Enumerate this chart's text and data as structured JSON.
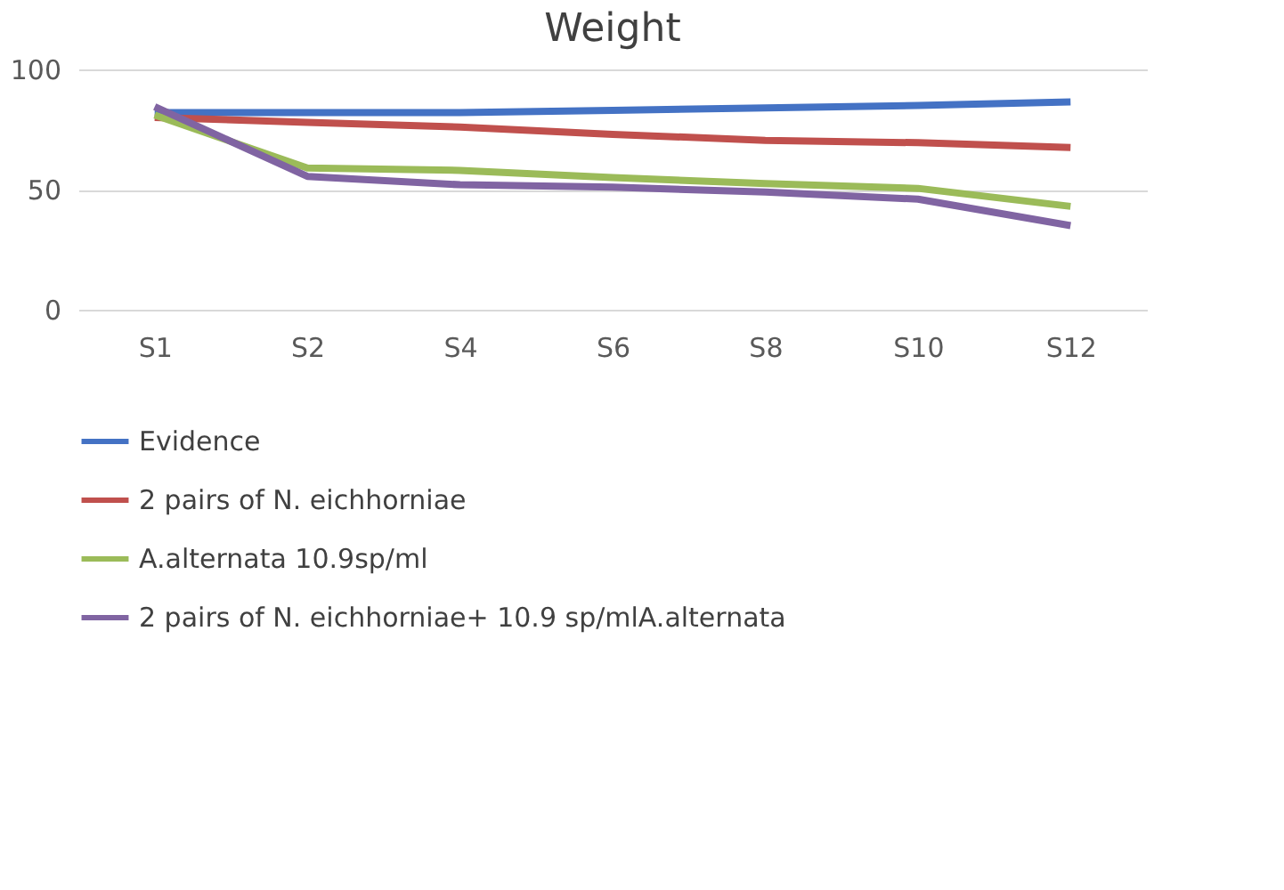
{
  "chart_data": {
    "type": "line",
    "title": "Weight",
    "categories": [
      "S1",
      "S2",
      "S4",
      "S6",
      "S8",
      "S10",
      "S12"
    ],
    "series": [
      {
        "name": "Evidence",
        "color": "#4472c4",
        "values": [
          82,
          82,
          82,
          83,
          84,
          85,
          86.5
        ]
      },
      {
        "name": "2 pairs of N. eichhorniae",
        "color": "#c0504d",
        "values": [
          80,
          78,
          76,
          73,
          70.5,
          69.5,
          67.5
        ]
      },
      {
        "name": "A.alternata 10.9sp/ml",
        "color": "#9bbb59",
        "values": [
          81,
          59,
          58,
          55,
          52.5,
          50.5,
          43
        ]
      },
      {
        "name": "2 pairs of  N. eichhorniae+ 10.9 sp/mlA.alternata",
        "color": "#8064a2",
        "values": [
          84.5,
          55.5,
          52,
          51,
          49,
          46,
          35
        ]
      }
    ],
    "ylim": [
      0,
      100
    ],
    "yticks": [
      0,
      50,
      100
    ],
    "grid": "y",
    "legend": "bottom",
    "marker": "none",
    "line_style": "solid"
  }
}
